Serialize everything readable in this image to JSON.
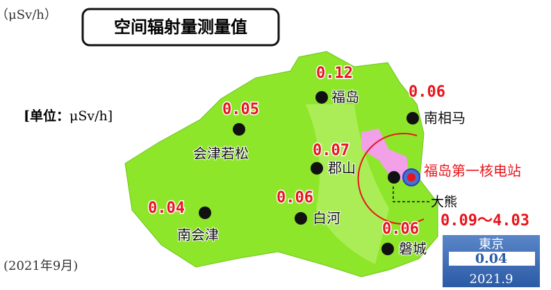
{
  "header": {
    "unit_top": "（μSv/h）",
    "title": "空间辐射量测量值",
    "unit_label": "[单位：",
    "unit_value": "μSv/h]",
    "date": "(2021年9月)"
  },
  "places": [
    {
      "name": "福岛",
      "value": "0.12"
    },
    {
      "name": "南相马",
      "value": "0.06"
    },
    {
      "name": "会津若松",
      "value": "0.05"
    },
    {
      "name": "郡山",
      "value": "0.07"
    },
    {
      "name": "白河",
      "value": "0.06"
    },
    {
      "name": "南会津",
      "value": "0.04"
    },
    {
      "name": "磐城",
      "value": "0.06"
    }
  ],
  "plant": {
    "name": "福岛第一核电站",
    "range": "0.09～4.03",
    "town": "大熊"
  },
  "tokyo": {
    "name": "東京",
    "value": "0.04",
    "date": "2021.9"
  }
}
